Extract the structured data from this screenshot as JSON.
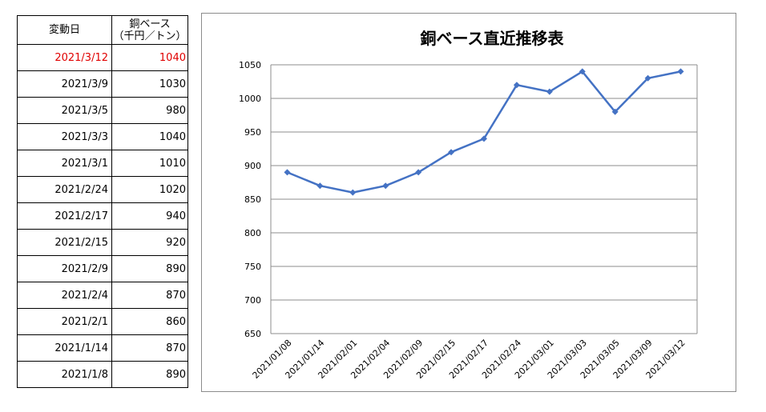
{
  "table": {
    "header": {
      "date": "変動日",
      "value_line1": "銅ベース",
      "value_line2": "（千円／トン）"
    },
    "rows": [
      {
        "date": "2021/3/12",
        "value": "1040"
      },
      {
        "date": "2021/3/9",
        "value": "1030"
      },
      {
        "date": "2021/3/5",
        "value": "980"
      },
      {
        "date": "2021/3/3",
        "value": "1040"
      },
      {
        "date": "2021/3/1",
        "value": "1010"
      },
      {
        "date": "2021/2/24",
        "value": "1020"
      },
      {
        "date": "2021/2/17",
        "value": "940"
      },
      {
        "date": "2021/2/15",
        "value": "920"
      },
      {
        "date": "2021/2/9",
        "value": "890"
      },
      {
        "date": "2021/2/4",
        "value": "870"
      },
      {
        "date": "2021/2/1",
        "value": "860"
      },
      {
        "date": "2021/1/14",
        "value": "870"
      },
      {
        "date": "2021/1/8",
        "value": "890"
      }
    ],
    "highlight_color": "#e00000"
  },
  "chart_data": {
    "type": "line",
    "title": "銅ベース直近推移表",
    "categories": [
      "2021/01/08",
      "2021/01/14",
      "2021/02/01",
      "2021/02/04",
      "2021/02/09",
      "2021/02/15",
      "2021/02/17",
      "2021/02/24",
      "2021/03/01",
      "2021/03/03",
      "2021/03/05",
      "2021/03/09",
      "2021/03/12"
    ],
    "series": [
      {
        "values": [
          890,
          870,
          860,
          870,
          890,
          920,
          940,
          1020,
          1010,
          1040,
          980,
          1030,
          1040
        ],
        "color": "#4472c4",
        "marker": "diamond"
      }
    ],
    "ylim": [
      650,
      1050
    ],
    "yticks": [
      650,
      700,
      750,
      800,
      850,
      900,
      950,
      1000,
      1050
    ],
    "grid": true,
    "legend": "none"
  }
}
